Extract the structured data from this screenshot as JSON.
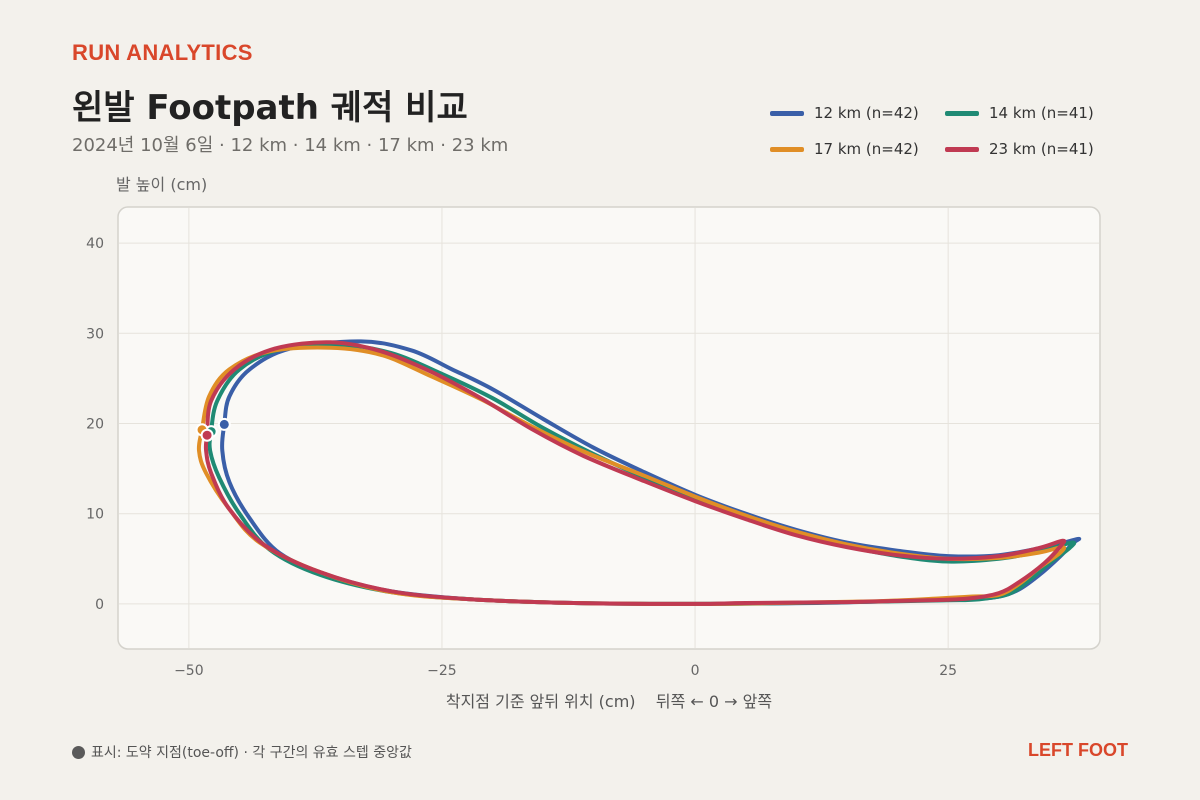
{
  "header": {
    "brand": "RUN ANALYTICS",
    "title": "왼발 Footpath 궤적 비교",
    "subtitle": "2024년 10월 6일 · 12 km · 14 km · 17 km · 23 km"
  },
  "legend": [
    {
      "label": "12 km  (n=42)",
      "color": "#3a5fa8"
    },
    {
      "label": "14 km  (n=41)",
      "color": "#1f8a74"
    },
    {
      "label": "17 km  (n=42)",
      "color": "#e08e26"
    },
    {
      "label": "23 km  (n=41)",
      "color": "#c03a52"
    }
  ],
  "footer": {
    "note": "표시: 도약 지점(toe-off) · 각 구간의 유효 스텝 중앙값",
    "side": "LEFT FOOT"
  },
  "chart_data": {
    "type": "line",
    "ylabel": "발 높이 (cm)",
    "xlabel": "착지점 기준 앞뒤 위치 (cm)    뒤쪽 ← 0 → 앞쪽",
    "xlim": [
      -57,
      40
    ],
    "ylim": [
      -5,
      44
    ],
    "xticks": [
      -50,
      -25,
      0,
      25
    ],
    "xtick_labels": [
      "−50",
      "−25",
      "0",
      "25"
    ],
    "yticks": [
      0,
      10,
      20,
      30,
      40
    ],
    "ytick_labels": [
      "0",
      "10",
      "20",
      "30",
      "40"
    ],
    "grid": true,
    "legend_position": "top-right",
    "series": [
      {
        "name": "12 km  (n=42)",
        "color": "#3a5fa8",
        "marker": [
          -46.5,
          19.9
        ],
        "points": [
          [
            -46.5,
            19.9
          ],
          [
            -46,
            23
          ],
          [
            -44,
            26
          ],
          [
            -40,
            28.3
          ],
          [
            -33,
            29.1
          ],
          [
            -28,
            28.1
          ],
          [
            -24,
            26
          ],
          [
            -20,
            23.8
          ],
          [
            -15,
            20.5
          ],
          [
            -10,
            17.3
          ],
          [
            -5,
            14.6
          ],
          [
            0,
            12.1
          ],
          [
            5,
            10
          ],
          [
            10,
            8.2
          ],
          [
            15,
            6.8
          ],
          [
            20,
            5.9
          ],
          [
            25,
            5.3
          ],
          [
            30,
            5.4
          ],
          [
            35,
            6.4
          ],
          [
            37.8,
            7.2
          ],
          [
            37.4,
            6.8
          ],
          [
            36,
            5.2
          ],
          [
            34,
            3.2
          ],
          [
            32,
            1.6
          ],
          [
            30,
            0.8
          ],
          [
            27,
            0.5
          ],
          [
            22,
            0.4
          ],
          [
            12,
            0.1
          ],
          [
            0,
            0
          ],
          [
            -12,
            0.1
          ],
          [
            -22,
            0.5
          ],
          [
            -30,
            1.4
          ],
          [
            -36,
            3.1
          ],
          [
            -41,
            5.6
          ],
          [
            -44,
            9.5
          ],
          [
            -46,
            13.5
          ],
          [
            -46.7,
            17
          ]
        ]
      },
      {
        "name": "14 km  (n=41)",
        "color": "#1f8a74",
        "marker": [
          -47.8,
          19.1
        ],
        "points": [
          [
            -47.8,
            19.1
          ],
          [
            -47.2,
            22.5
          ],
          [
            -45,
            26
          ],
          [
            -41,
            28.2
          ],
          [
            -35,
            28.7
          ],
          [
            -30,
            27.8
          ],
          [
            -25,
            25.5
          ],
          [
            -20,
            22.8
          ],
          [
            -15,
            19.5
          ],
          [
            -10,
            16.6
          ],
          [
            -5,
            14
          ],
          [
            0,
            11.8
          ],
          [
            5,
            9.7
          ],
          [
            10,
            7.9
          ],
          [
            15,
            6.4
          ],
          [
            20,
            5.3
          ],
          [
            25,
            4.7
          ],
          [
            30,
            5
          ],
          [
            34,
            5.8
          ],
          [
            37.2,
            6.8
          ],
          [
            37,
            6.2
          ],
          [
            35,
            4.5
          ],
          [
            33,
            2.6
          ],
          [
            31,
            1.1
          ],
          [
            28,
            0.5
          ],
          [
            25,
            0.4
          ],
          [
            20,
            0.3
          ],
          [
            10,
            0.1
          ],
          [
            0,
            0
          ],
          [
            -12,
            0.1
          ],
          [
            -22,
            0.5
          ],
          [
            -30,
            1.3
          ],
          [
            -37,
            3.2
          ],
          [
            -42,
            6
          ],
          [
            -45,
            10
          ],
          [
            -47,
            14
          ],
          [
            -47.9,
            17
          ]
        ]
      },
      {
        "name": "17 km  (n=42)",
        "color": "#e08e26",
        "marker": [
          -48.7,
          19.3
        ],
        "points": [
          [
            -48.7,
            19.3
          ],
          [
            -48,
            23
          ],
          [
            -46,
            26
          ],
          [
            -42,
            28
          ],
          [
            -36,
            28.4
          ],
          [
            -31,
            27.6
          ],
          [
            -26,
            25.2
          ],
          [
            -21,
            22.6
          ],
          [
            -16,
            19.6
          ],
          [
            -11,
            16.9
          ],
          [
            -5,
            14.2
          ],
          [
            0,
            11.9
          ],
          [
            5,
            9.8
          ],
          [
            10,
            8
          ],
          [
            15,
            6.6
          ],
          [
            20,
            5.6
          ],
          [
            25,
            5
          ],
          [
            30,
            5.1
          ],
          [
            34,
            5.7
          ],
          [
            36.3,
            6.3
          ],
          [
            36,
            5.6
          ],
          [
            34,
            4
          ],
          [
            32,
            2.2
          ],
          [
            30,
            1
          ],
          [
            27,
            0.8
          ],
          [
            24,
            0.6
          ],
          [
            18,
            0.3
          ],
          [
            8,
            0.1
          ],
          [
            0,
            0
          ],
          [
            -12,
            0.1
          ],
          [
            -22,
            0.5
          ],
          [
            -30,
            1.3
          ],
          [
            -37,
            3.5
          ],
          [
            -43,
            6.8
          ],
          [
            -46,
            10.5
          ],
          [
            -48.3,
            14.5
          ],
          [
            -49,
            17
          ]
        ]
      },
      {
        "name": "23 km  (n=41)",
        "color": "#c03a52",
        "marker": [
          -48.2,
          18.7
        ],
        "points": [
          [
            -48.2,
            18.7
          ],
          [
            -47.8,
            22.5
          ],
          [
            -45.5,
            26
          ],
          [
            -41.5,
            28.3
          ],
          [
            -36,
            29
          ],
          [
            -31,
            28
          ],
          [
            -26,
            25.7
          ],
          [
            -21,
            22.7
          ],
          [
            -16,
            19.3
          ],
          [
            -11,
            16.4
          ],
          [
            -5,
            13.6
          ],
          [
            0,
            11.4
          ],
          [
            5,
            9.4
          ],
          [
            10,
            7.6
          ],
          [
            15,
            6.3
          ],
          [
            20,
            5.4
          ],
          [
            25,
            5
          ],
          [
            30,
            5.3
          ],
          [
            34,
            6.2
          ],
          [
            36.3,
            7
          ],
          [
            36.1,
            6.4
          ],
          [
            34.5,
            4.5
          ],
          [
            32,
            2.4
          ],
          [
            30,
            1.2
          ],
          [
            27,
            0.6
          ],
          [
            23,
            0.4
          ],
          [
            15,
            0.2
          ],
          [
            5,
            0.1
          ],
          [
            0,
            0
          ],
          [
            -12,
            0.1
          ],
          [
            -22,
            0.5
          ],
          [
            -30,
            1.4
          ],
          [
            -37,
            3.5
          ],
          [
            -42.5,
            6.5
          ],
          [
            -46,
            10.5
          ],
          [
            -47.8,
            14.5
          ],
          [
            -48.3,
            17
          ]
        ]
      }
    ]
  }
}
